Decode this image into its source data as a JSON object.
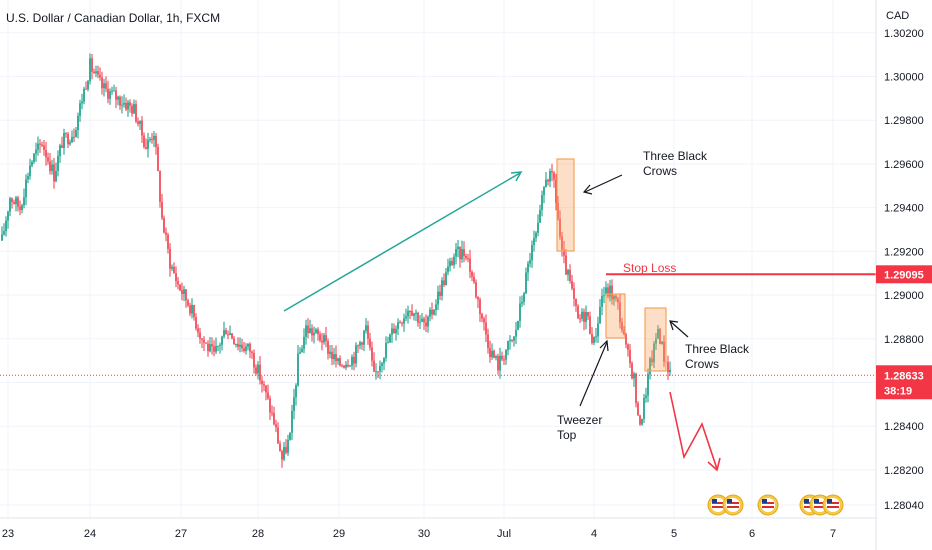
{
  "chart_data": {
    "type": "candlestick",
    "title": "U.S. Dollar / Canadian Dollar, 1h, FXCM",
    "currency_label": "CAD",
    "y_ticks": [
      1.302,
      1.3,
      1.298,
      1.296,
      1.294,
      1.292,
      1.29,
      1.288,
      1.286,
      1.284,
      1.282,
      1.2804
    ],
    "y_tick_labels": [
      "1.30200",
      "1.30000",
      "1.29800",
      "1.29600",
      "1.29400",
      "1.29200",
      "1.29000",
      "1.28800",
      "1.28600",
      "1.28400",
      "1.28200",
      "1.28040"
    ],
    "ylim": [
      1.2798,
      1.3035
    ],
    "x_tick_labels": [
      "23",
      "24",
      "27",
      "28",
      "29",
      "30",
      "Jul",
      "4",
      "5",
      "6",
      "7"
    ],
    "grid": true,
    "current_price": {
      "label": "1.28633",
      "timer": "38:19",
      "value": 1.28633,
      "color": "#f23645"
    },
    "stop_loss": {
      "label": "Stop Loss",
      "value": 1.29095,
      "price_label": "1.29095",
      "color": "#f23645"
    },
    "annotations": [
      {
        "text_lines": [
          "Three Black",
          "Crows"
        ]
      },
      {
        "text_lines": [
          "Three Black",
          "Crows"
        ]
      },
      {
        "text_lines": [
          "Tweezer",
          "Top"
        ]
      }
    ],
    "up_color": "#089981",
    "down_color": "#f23645",
    "box_color": "#f7a35c"
  }
}
